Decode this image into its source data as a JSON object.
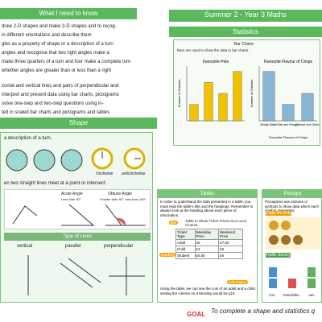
{
  "header": {
    "left": "What I need to know",
    "right": "Summer 2 - Year 3 Maths"
  },
  "objectives": [
    "draw 2-D shapes and make 3-D shapes and to recog-",
    "in different orientations and describe them",
    "gles as a property of shape or a description of a turn",
    "angles and recognise that two right angles make a",
    "make three quarters of a turn and four make a complete turn",
    "whether angles are greater than or less than a right",
    "zontal and vertical lines and pairs of perpendicular and",
    "interpret and present data using bar charts, pictograms",
    "solve one-step and two-step questions using in-",
    "ted in scaled bar charts and pictograms and tables"
  ],
  "shape": {
    "title": "Shape",
    "turn_text": "a description of a turn.",
    "turns": [
      "clockwise",
      "anticlockwise"
    ],
    "meet_text": "en two straight lines meet at a point or intersect.",
    "angles": [
      {
        "name": "Acute Angle",
        "note": "Less than 90°"
      },
      {
        "name": "Obtuse Angle",
        "note": "Greater than 90° Less than 180°"
      }
    ],
    "lines_title": "Type of Lines",
    "lines": [
      "vertical",
      "parallel",
      "perpendicular"
    ]
  },
  "statistics": {
    "title": "Statistics",
    "bar_title": "Bar Charts",
    "intro": "Bars are used to show the data in bar charts.",
    "charts": [
      {
        "type": "bar",
        "title": "Favourite Pets",
        "y_label": "Number of Children",
        "categories": [
          null,
          null,
          null,
          null
        ],
        "values": [
          3,
          7,
          5,
          9
        ],
        "color": "#f2c200",
        "ylim": [
          0,
          10
        ]
      },
      {
        "type": "bar",
        "title": "Favourite Flavour of Crisps",
        "y_label": "Number of Children",
        "x_label": "Favourite Flavour of Crisps",
        "categories": [
          "Ready Salted",
          "Salt and Vinegar",
          "Cheese and Onion"
        ],
        "values": [
          9,
          3,
          5
        ],
        "color": "#8ab6d6",
        "ylim": [
          0,
          10
        ]
      }
    ]
  },
  "tables": {
    "title": "Tables",
    "text": "In order to understand the data presented in a table, you must read the table's title and the headings. Remember to always look at the heading above each piece of information.",
    "caption": "Table to Show Ticket Prices at a Local Cinema",
    "tags": [
      "title",
      "heading",
      "information"
    ],
    "headers": [
      "Ticket Type",
      "Weekday Price",
      "Weekend Price"
    ],
    "rows": [
      [
        "Adult",
        "£6",
        "£7.50"
      ],
      [
        "Child",
        "£4",
        "£6"
      ],
      [
        "Student",
        "£5.50",
        "£6"
      ]
    ],
    "footer": "Using the table, we can see the cost of an adult and a child visiting the cinema on a Monday would be £10."
  },
  "pictogram": {
    "title": "Pictogra",
    "text": "Pictograms use pictures or symbols to show data which each symbol represents",
    "sub1": "Class A's Pets",
    "sub2": "Traffic Survey",
    "labels": [
      "Car",
      "Motorbike",
      "Van"
    ]
  },
  "footer": {
    "text": "To complete a shape and statistics q",
    "logo": "GOAL"
  }
}
